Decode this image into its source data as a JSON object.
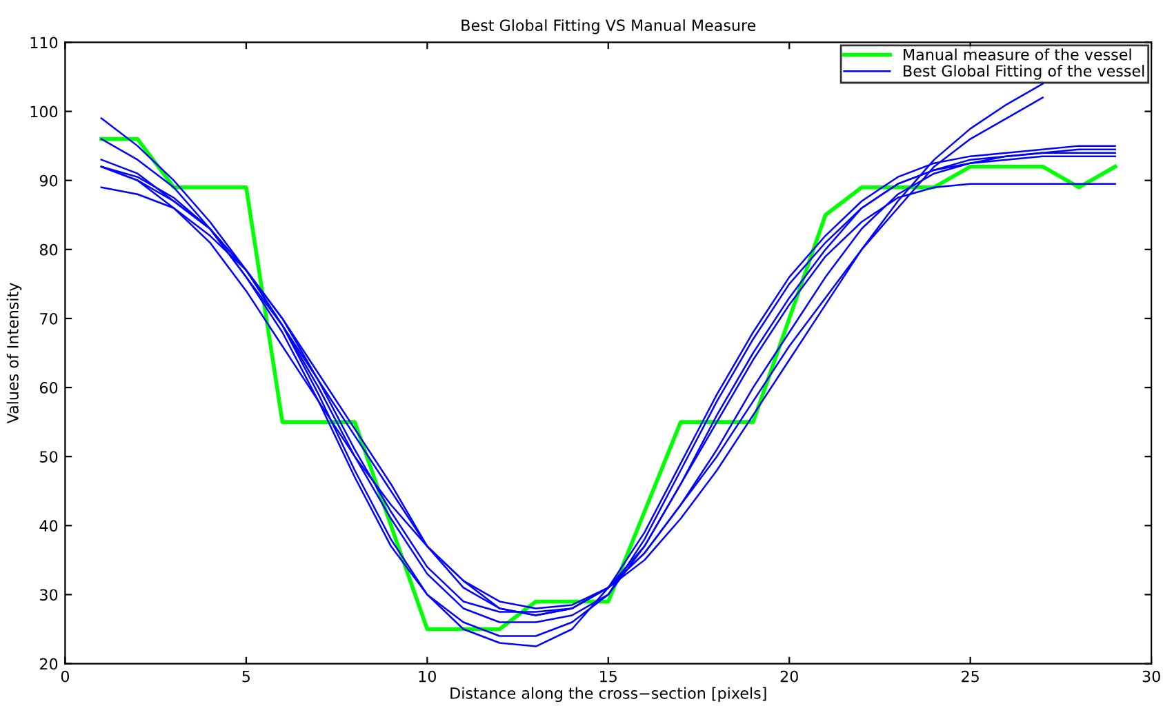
{
  "chart_data": {
    "type": "line",
    "title": "Best Global Fitting VS Manual Measure",
    "xlabel": "Distance along the cross−section [pixels]",
    "ylabel": "Values of Intensity",
    "x": [
      1,
      2,
      3,
      4,
      5,
      6,
      7,
      8,
      9,
      10,
      11,
      12,
      13,
      14,
      15,
      16,
      17,
      18,
      19,
      20,
      21,
      22,
      23,
      24,
      25,
      26,
      27,
      28,
      29
    ],
    "xlim": [
      0,
      30
    ],
    "xticks": [
      0,
      5,
      10,
      15,
      20,
      25,
      30
    ],
    "ylim": [
      20,
      110
    ],
    "yticks": [
      20,
      30,
      40,
      50,
      60,
      70,
      80,
      90,
      100,
      110
    ],
    "grid": false,
    "legend": "top right",
    "marker": "none",
    "line_style": "solid",
    "series": [
      {
        "name": "Manual measure of the vessel",
        "color": "#00ff00",
        "x": [
          1,
          2,
          3,
          5,
          6,
          8,
          10,
          12,
          13,
          15,
          17,
          19,
          21,
          22,
          24,
          25,
          27,
          28,
          29
        ],
        "values": [
          96,
          96,
          89,
          89,
          55,
          55,
          25,
          25,
          29,
          29,
          55,
          55,
          85,
          89,
          89,
          92,
          92,
          89,
          92
        ]
      },
      {
        "name": "Best Global Fitting of the vessel",
        "color": "#0000ff",
        "values": [
          92,
          90,
          87,
          83,
          77,
          69,
          60,
          50,
          41,
          33,
          28,
          26,
          26,
          27,
          30,
          37,
          46,
          56,
          65,
          73,
          80,
          86,
          89.5,
          91.5,
          92.5,
          93,
          93.5,
          93.5,
          93.5
        ]
      },
      {
        "color": "#0000ff",
        "values": [
          99,
          95,
          90,
          84,
          77,
          70,
          62,
          54,
          46,
          37,
          32,
          28,
          27,
          28,
          31,
          35,
          41,
          48,
          56,
          64,
          72,
          80,
          87,
          93,
          97.5,
          101,
          104,
          null,
          null
        ]
      },
      {
        "color": "#0000ff",
        "values": [
          96,
          93,
          89,
          83,
          76,
          69,
          61,
          53,
          45,
          37,
          31,
          28,
          27,
          28,
          31,
          36,
          43,
          50,
          58,
          66,
          73,
          80,
          86,
          92,
          96,
          99,
          102,
          null,
          null
        ]
      },
      {
        "color": "#0000ff",
        "values": [
          89,
          88,
          86,
          82,
          77,
          70,
          61,
          51,
          42,
          34,
          29,
          27.5,
          27.5,
          28,
          31,
          37,
          46,
          55,
          64,
          72,
          79,
          84,
          87.5,
          89,
          89.5,
          89.5,
          89.5,
          89.5,
          89.5
        ]
      },
      {
        "color": "#0000ff",
        "values": [
          92,
          90.5,
          87.5,
          83,
          77,
          69,
          59,
          48,
          38,
          30,
          25,
          23,
          22.5,
          25,
          31,
          39,
          49,
          59,
          68,
          76,
          82,
          87,
          90.5,
          92.5,
          93.5,
          94,
          94.5,
          95,
          95
        ]
      },
      {
        "color": "#0000ff",
        "values": [
          93,
          91,
          87,
          83,
          76,
          68,
          58,
          47,
          37,
          30,
          26,
          24,
          24,
          26,
          30,
          38,
          48,
          58,
          67,
          75,
          81,
          86,
          89.5,
          91.5,
          93,
          93.5,
          94,
          94,
          94
        ]
      },
      {
        "color": "#0000ff",
        "values": [
          92,
          90,
          86,
          81,
          74,
          66,
          58,
          50,
          43,
          37,
          32,
          29,
          28,
          28.5,
          31,
          36,
          43,
          51,
          60,
          68,
          76,
          83,
          88,
          91,
          92.5,
          93.5,
          94,
          94.5,
          94.5
        ]
      }
    ]
  }
}
